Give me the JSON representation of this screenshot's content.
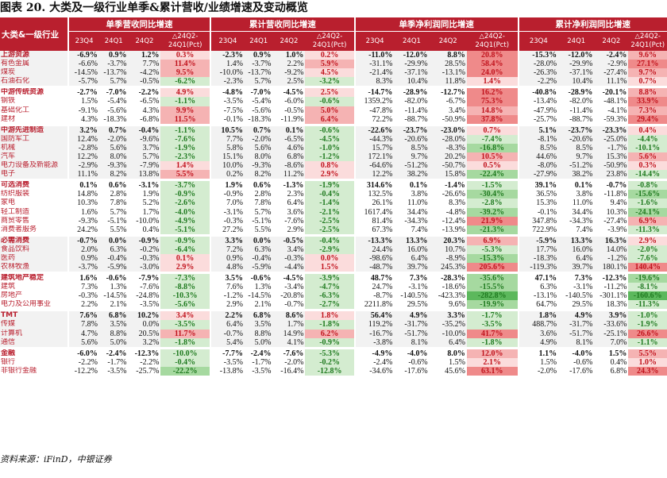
{
  "title": "图表 20. 大类及一级行业单季&累计营收/业绩增速及变动概览",
  "footer": "资料来源：iFinD，中银证券",
  "header": {
    "category": "大类&一级行业",
    "groups": [
      "单季营收同比增速",
      "累计营收同比增速",
      "单季净利润同比增速",
      "累计净利润同比增速"
    ],
    "cols": [
      "23Q4",
      "24Q1",
      "24Q2"
    ],
    "change_top": "△24Q2-",
    "change_bottom": "24Q1(Pct)"
  },
  "colors": {
    "header_red": "#b91f2e",
    "pos_strong": "#ef8a8a",
    "pos_mid": "#f5b3b3",
    "pos_light": "#fbdcdc",
    "neg_strong": "#5cb85c",
    "neg_mid": "#a6d9a0",
    "neg_light": "#d4ecd0",
    "shade": "#f2f2f2"
  },
  "rows": [
    {
      "label": "上游资源",
      "sector": true,
      "group": 1,
      "v": [
        "-6.9%",
        "0.9%",
        "1.2%",
        "0.3%",
        "-2.3%",
        "0.9%",
        "1.0%",
        "0.2%",
        "-11.0%",
        "-12.0%",
        "8.8%",
        "20.8%",
        "-15.3%",
        "-12.0%",
        "-2.4%",
        "9.6%"
      ]
    },
    {
      "label": "有色金属",
      "group": 1,
      "v": [
        "-6.6%",
        "-3.7%",
        "7.7%",
        "11.4%",
        "1.4%",
        "-3.7%",
        "2.2%",
        "5.9%",
        "-31.1%",
        "-29.9%",
        "28.5%",
        "58.4%",
        "-28.0%",
        "-29.9%",
        "-2.9%",
        "27.1%"
      ]
    },
    {
      "label": "煤炭",
      "group": 1,
      "v": [
        "-14.5%",
        "-13.7%",
        "-4.2%",
        "9.5%",
        "-10.0%",
        "-13.7%",
        "-9.2%",
        "4.5%",
        "-21.4%",
        "-37.1%",
        "-13.1%",
        "24.0%",
        "-26.3%",
        "-37.1%",
        "-27.4%",
        "9.7%"
      ]
    },
    {
      "label": "石油石化",
      "group": 1,
      "v": [
        "-5.7%",
        "5.7%",
        "-0.5%",
        "-6.2%",
        "-2.3%",
        "5.7%",
        "2.5%",
        "-3.2%",
        "8.3%",
        "10.4%",
        "11.8%",
        "1.4%",
        "-2.2%",
        "10.4%",
        "11.1%",
        "0.7%"
      ]
    },
    {
      "label": "中游传统资源",
      "sector": true,
      "group": 2,
      "v": [
        "-2.7%",
        "-7.0%",
        "-2.2%",
        "4.9%",
        "-4.8%",
        "-7.0%",
        "-4.5%",
        "2.5%",
        "-14.7%",
        "-28.9%",
        "-12.7%",
        "16.2%",
        "-40.8%",
        "-28.9%",
        "-20.1%",
        "8.8%"
      ]
    },
    {
      "label": "钢铁",
      "group": 2,
      "v": [
        "1.5%",
        "-5.4%",
        "-6.5%",
        "-1.1%",
        "-3.5%",
        "-5.4%",
        "-6.0%",
        "-0.6%",
        "1359.2%",
        "-82.0%",
        "-6.7%",
        "75.3%",
        "-13.4%",
        "-82.0%",
        "-48.1%",
        "33.9%"
      ]
    },
    {
      "label": "基础化工",
      "group": 2,
      "v": [
        "-9.1%",
        "-5.6%",
        "4.3%",
        "9.9%",
        "-7.5%",
        "-5.6%",
        "-0.5%",
        "5.0%",
        "-47.8%",
        "-11.4%",
        "3.4%",
        "14.8%",
        "-47.9%",
        "-11.4%",
        "-4.1%",
        "7.3%"
      ]
    },
    {
      "label": "建材",
      "group": 2,
      "v": [
        "4.3%",
        "-18.3%",
        "-6.8%",
        "11.5%",
        "-0.1%",
        "-18.3%",
        "-11.9%",
        "6.4%",
        "72.2%",
        "-88.7%",
        "-50.9%",
        "37.8%",
        "-25.7%",
        "-88.7%",
        "-59.3%",
        "29.4%"
      ]
    },
    {
      "label": "中游先进制造",
      "sector": true,
      "group": 3,
      "v": [
        "3.2%",
        "0.7%",
        "-0.4%",
        "-1.1%",
        "10.5%",
        "0.7%",
        "0.1%",
        "-0.6%",
        "-22.6%",
        "-23.7%",
        "-23.0%",
        "0.7%",
        "5.1%",
        "-23.7%",
        "-23.3%",
        "0.4%"
      ]
    },
    {
      "label": "国防军工",
      "group": 3,
      "v": [
        "12.4%",
        "-2.0%",
        "-9.6%",
        "-7.6%",
        "7.7%",
        "-2.0%",
        "-6.5%",
        "-4.5%",
        "-44.3%",
        "-20.6%",
        "-28.0%",
        "-7.4%",
        "-8.1%",
        "-20.6%",
        "-25.0%",
        "-4.4%"
      ]
    },
    {
      "label": "机械",
      "group": 3,
      "v": [
        "-2.8%",
        "5.6%",
        "3.7%",
        "-1.9%",
        "5.8%",
        "5.6%",
        "4.6%",
        "-1.0%",
        "15.7%",
        "8.5%",
        "-8.3%",
        "-16.8%",
        "8.5%",
        "8.5%",
        "-1.7%",
        "-10.1%"
      ]
    },
    {
      "label": "汽车",
      "group": 3,
      "v": [
        "12.2%",
        "8.0%",
        "5.7%",
        "-2.3%",
        "15.1%",
        "8.0%",
        "6.8%",
        "-1.2%",
        "172.1%",
        "9.7%",
        "20.2%",
        "10.5%",
        "44.6%",
        "9.7%",
        "15.3%",
        "5.6%"
      ]
    },
    {
      "label": "电力设备及新能源",
      "group": 3,
      "v": [
        "-2.9%",
        "-9.3%",
        "-7.9%",
        "1.4%",
        "10.0%",
        "-9.3%",
        "-8.6%",
        "0.8%",
        "-64.6%",
        "-51.2%",
        "-50.7%",
        "0.5%",
        "-8.0%",
        "-51.2%",
        "-50.9%",
        "0.3%"
      ]
    },
    {
      "label": "电子",
      "group": 3,
      "v": [
        "11.1%",
        "8.2%",
        "13.8%",
        "5.5%",
        "0.2%",
        "8.2%",
        "11.2%",
        "2.9%",
        "12.2%",
        "38.2%",
        "15.8%",
        "-22.4%",
        "-27.9%",
        "38.2%",
        "23.8%",
        "-14.4%"
      ]
    },
    {
      "label": "可选消费",
      "sector": true,
      "group": 4,
      "v": [
        "0.1%",
        "0.6%",
        "-3.1%",
        "-3.7%",
        "1.9%",
        "0.6%",
        "-1.3%",
        "-1.9%",
        "314.6%",
        "0.1%",
        "-1.4%",
        "-1.5%",
        "39.1%",
        "0.1%",
        "-0.7%",
        "-0.8%"
      ]
    },
    {
      "label": "纺织服装",
      "group": 4,
      "v": [
        "14.8%",
        "2.8%",
        "1.9%",
        "-0.9%",
        "-0.9%",
        "2.8%",
        "2.3%",
        "-0.4%",
        "132.5%",
        "3.8%",
        "-26.6%",
        "-30.4%",
        "36.5%",
        "3.8%",
        "-11.8%",
        "-15.6%"
      ]
    },
    {
      "label": "家电",
      "group": 4,
      "v": [
        "10.3%",
        "7.8%",
        "5.2%",
        "-2.6%",
        "7.0%",
        "7.8%",
        "6.4%",
        "-1.4%",
        "26.1%",
        "11.0%",
        "8.3%",
        "-2.8%",
        "15.3%",
        "11.0%",
        "9.4%",
        "-1.6%"
      ]
    },
    {
      "label": "轻工制造",
      "group": 4,
      "v": [
        "1.6%",
        "5.7%",
        "1.7%",
        "-4.0%",
        "-3.1%",
        "5.7%",
        "3.6%",
        "-2.1%",
        "1617.4%",
        "34.4%",
        "-4.8%",
        "-39.2%",
        "-0.1%",
        "34.4%",
        "10.3%",
        "-24.1%"
      ]
    },
    {
      "label": "商贸零售",
      "group": 4,
      "v": [
        "-9.3%",
        "-5.1%",
        "-10.0%",
        "-4.9%",
        "-0.3%",
        "-5.1%",
        "-7.6%",
        "-2.5%",
        "81.4%",
        "-34.3%",
        "-12.4%",
        "21.9%",
        "347.8%",
        "-34.3%",
        "-27.4%",
        "6.9%"
      ]
    },
    {
      "label": "消费者服务",
      "group": 4,
      "v": [
        "24.2%",
        "5.5%",
        "0.4%",
        "-5.1%",
        "27.2%",
        "5.5%",
        "2.9%",
        "-2.5%",
        "67.3%",
        "7.4%",
        "-13.9%",
        "-21.3%",
        "722.9%",
        "7.4%",
        "-3.9%",
        "-11.3%"
      ]
    },
    {
      "label": "必需消费",
      "sector": true,
      "group": 5,
      "v": [
        "-0.7%",
        "0.0%",
        "-0.9%",
        "-0.9%",
        "3.3%",
        "0.0%",
        "-0.5%",
        "-0.4%",
        "-13.3%",
        "13.3%",
        "20.3%",
        "6.9%",
        "-5.9%",
        "13.3%",
        "16.3%",
        "2.9%"
      ]
    },
    {
      "label": "食品饮料",
      "group": 5,
      "v": [
        "2.0%",
        "6.3%",
        "-0.2%",
        "-6.4%",
        "7.2%",
        "6.3%",
        "3.4%",
        "-2.9%",
        "24.4%",
        "16.0%",
        "10.7%",
        "-5.3%",
        "17.7%",
        "16.0%",
        "14.0%",
        "-2.0%"
      ]
    },
    {
      "label": "医药",
      "group": 5,
      "v": [
        "0.9%",
        "-0.4%",
        "-0.3%",
        "0.1%",
        "0.9%",
        "-0.4%",
        "-0.3%",
        "0.0%",
        "-98.6%",
        "6.4%",
        "-8.9%",
        "-15.3%",
        "-18.3%",
        "6.4%",
        "-1.2%",
        "-7.6%"
      ]
    },
    {
      "label": "农林牧渔",
      "group": 5,
      "v": [
        "-3.7%",
        "-5.9%",
        "-3.0%",
        "2.9%",
        "4.8%",
        "-5.9%",
        "-4.4%",
        "1.5%",
        "-48.7%",
        "39.7%",
        "245.3%",
        "205.6%",
        "-119.3%",
        "39.7%",
        "180.1%",
        "140.4%"
      ]
    },
    {
      "label": "建筑地产稳定",
      "sector": true,
      "group": 6,
      "v": [
        "1.6%",
        "-0.6%",
        "-7.9%",
        "-7.3%",
        "3.5%",
        "-0.6%",
        "-4.5%",
        "-3.9%",
        "48.7%",
        "7.3%",
        "-28.3%",
        "-35.6%",
        "47.1%",
        "7.3%",
        "-12.3%",
        "-19.6%"
      ]
    },
    {
      "label": "建筑",
      "group": 6,
      "v": [
        "7.3%",
        "1.3%",
        "-7.6%",
        "-8.8%",
        "7.6%",
        "1.3%",
        "-3.4%",
        "-4.7%",
        "24.7%",
        "-3.1%",
        "-18.6%",
        "-15.5%",
        "6.3%",
        "-3.1%",
        "-11.2%",
        "-8.1%"
      ]
    },
    {
      "label": "房地产",
      "group": 6,
      "v": [
        "-0.3%",
        "-14.5%",
        "-24.8%",
        "-10.3%",
        "-1.2%",
        "-14.5%",
        "-20.8%",
        "-6.3%",
        "-8.7%",
        "-140.5%",
        "-423.3%",
        "-282.8%",
        "-13.1%",
        "-140.5%",
        "-301.1%",
        "-160.6%"
      ]
    },
    {
      "label": "电力及公用事业",
      "group": 6,
      "v": [
        "2.2%",
        "2.1%",
        "-3.5%",
        "-5.6%",
        "2.9%",
        "2.1%",
        "-0.7%",
        "-2.7%",
        "2211.8%",
        "29.5%",
        "9.6%",
        "-19.9%",
        "64.7%",
        "29.5%",
        "18.3%",
        "-11.3%"
      ]
    },
    {
      "label": "TMT",
      "sector": true,
      "group": 7,
      "v": [
        "7.6%",
        "6.8%",
        "10.2%",
        "3.4%",
        "2.2%",
        "6.8%",
        "8.6%",
        "1.8%",
        "56.4%",
        "4.9%",
        "3.3%",
        "-1.7%",
        "1.8%",
        "4.9%",
        "3.9%",
        "-1.0%"
      ]
    },
    {
      "label": "传媒",
      "group": 7,
      "v": [
        "7.8%",
        "3.5%",
        "0.0%",
        "-3.5%",
        "6.4%",
        "3.5%",
        "1.7%",
        "-1.8%",
        "119.2%",
        "-31.7%",
        "-35.2%",
        "-3.5%",
        "488.7%",
        "-31.7%",
        "-33.6%",
        "-1.9%"
      ]
    },
    {
      "label": "计算机",
      "group": 7,
      "v": [
        "4.7%",
        "8.8%",
        "20.5%",
        "11.7%",
        "-0.7%",
        "8.8%",
        "14.9%",
        "6.2%",
        "-16.7%",
        "-51.7%",
        "-10.0%",
        "41.7%",
        "3.6%",
        "-51.7%",
        "-25.1%",
        "26.6%"
      ]
    },
    {
      "label": "通信",
      "group": 7,
      "v": [
        "5.6%",
        "5.0%",
        "3.2%",
        "-1.8%",
        "5.4%",
        "5.0%",
        "4.1%",
        "-0.9%",
        "-3.8%",
        "8.1%",
        "6.4%",
        "-1.8%",
        "4.9%",
        "8.1%",
        "7.0%",
        "-1.1%"
      ]
    },
    {
      "label": "金融",
      "sector": true,
      "group": 8,
      "v": [
        "-6.0%",
        "-2.4%",
        "-12.3%",
        "-10.0%",
        "-7.7%",
        "-2.4%",
        "-7.6%",
        "-5.3%",
        "-4.9%",
        "-4.0%",
        "8.0%",
        "12.0%",
        "1.1%",
        "-4.0%",
        "1.5%",
        "5.5%"
      ]
    },
    {
      "label": "银行",
      "group": 8,
      "v": [
        "-2.2%",
        "-1.7%",
        "-2.2%",
        "-0.4%",
        "-3.5%",
        "-1.7%",
        "-2.0%",
        "-0.2%",
        "-2.4%",
        "-0.6%",
        "1.5%",
        "2.1%",
        "1.5%",
        "-0.6%",
        "0.4%",
        "1.0%"
      ]
    },
    {
      "label": "非银行金融",
      "group": 8,
      "v": [
        "-12.2%",
        "-3.5%",
        "-25.7%",
        "-22.2%",
        "-13.8%",
        "-3.5%",
        "-16.4%",
        "-12.8%",
        "-34.6%",
        "-17.6%",
        "45.6%",
        "63.1%",
        "-2.0%",
        "-17.6%",
        "6.8%",
        "24.3%"
      ]
    }
  ]
}
